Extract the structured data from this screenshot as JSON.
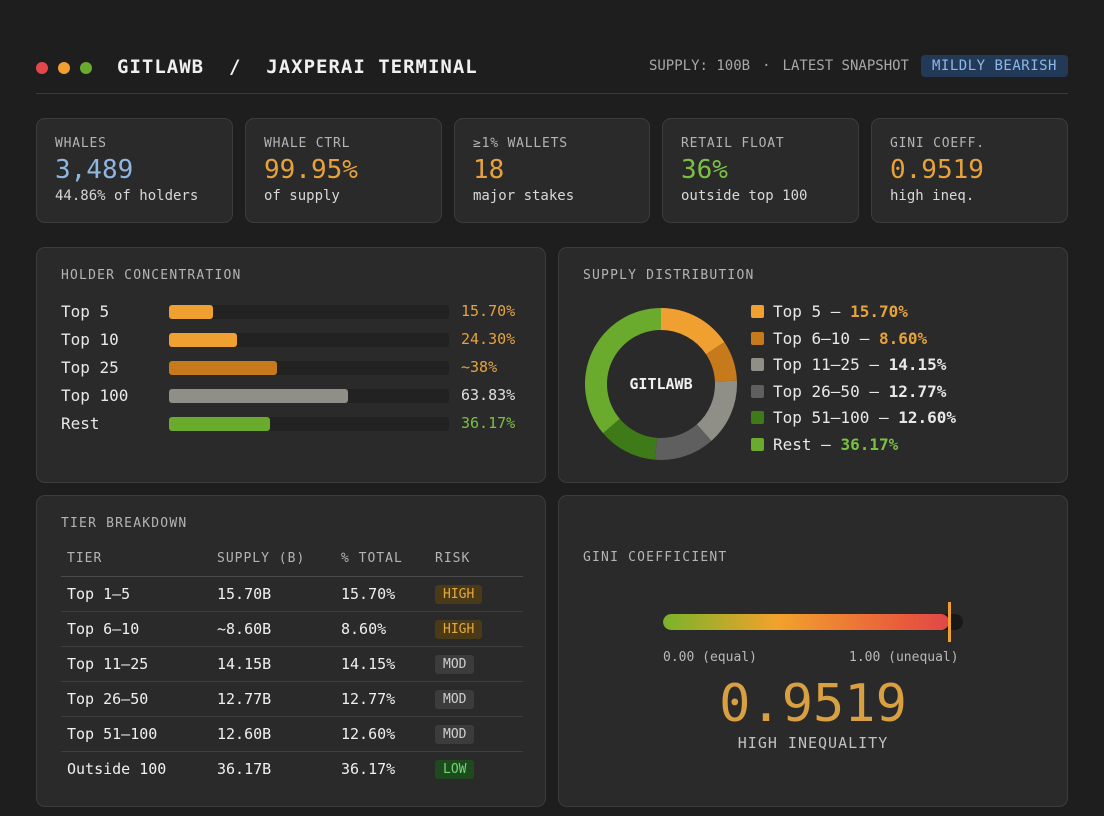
{
  "header": {
    "title": "GITLAWB  /  JAXPERAI TERMINAL",
    "supply": "SUPPLY: 100B",
    "separator": "·",
    "snapshot": "LATEST SNAPSHOT",
    "sentiment": "MILDLY BEARISH",
    "dots": [
      "#e2474b",
      "#f0a030",
      "#6aab2e"
    ]
  },
  "stats": [
    {
      "label": "WHALES",
      "value": "3,489",
      "sub": "44.86% of holders",
      "color": "#8fb6e0"
    },
    {
      "label": "WHALE CTRL",
      "value": "99.95%",
      "sub": "of supply",
      "color": "#e6a23c"
    },
    {
      "label": "≥1% WALLETS",
      "value": "18",
      "sub": "major stakes",
      "color": "#e6a23c"
    },
    {
      "label": "RETAIL FLOAT",
      "value": "36%",
      "sub": "outside top 100",
      "color": "#7ac143"
    },
    {
      "label": "GINI COEFF.",
      "value": "0.9519",
      "sub": "high ineq.",
      "color": "#e6a23c"
    }
  ],
  "concentration": {
    "title": "HOLDER CONCENTRATION",
    "rows": [
      {
        "name": "Top 5",
        "pct": "15.70%",
        "fraction": 0.157,
        "color": "#f0a030",
        "pct_color": "#e6a23c"
      },
      {
        "name": "Top 10",
        "pct": "24.30%",
        "fraction": 0.243,
        "color": "#f0a030",
        "pct_color": "#e6a23c"
      },
      {
        "name": "Top 25",
        "pct": "~38%",
        "fraction": 0.385,
        "color": "#c67a1c",
        "pct_color": "#e6a23c"
      },
      {
        "name": "Top 100",
        "pct": "63.83%",
        "fraction": 0.638,
        "color": "#8f8f88",
        "pct_color": "#e0e0e0"
      },
      {
        "name": "Rest",
        "pct": "36.17%",
        "fraction": 0.362,
        "color": "#6aab2e",
        "pct_color": "#7ac143"
      }
    ]
  },
  "distribution": {
    "title": "SUPPLY DISTRIBUTION",
    "center_label": "GITLAWB",
    "legend": [
      {
        "label": "Top 5 — ",
        "value": "15.70%",
        "color": "#f0a030",
        "value_color": "#e6a23c"
      },
      {
        "label": "Top 6–10 — ",
        "value": "8.60%",
        "color": "#c67a1c",
        "value_color": "#e6a23c"
      },
      {
        "label": "Top 11–25 — ",
        "value": "14.15%",
        "color": "#8f8f88",
        "value_color": "#e8e8e8"
      },
      {
        "label": "Top 26–50 — ",
        "value": "12.77%",
        "color": "#5f5f5f",
        "value_color": "#e8e8e8"
      },
      {
        "label": "Top 51–100 — ",
        "value": "12.60%",
        "color": "#3f7a18",
        "value_color": "#e8e8e8"
      },
      {
        "label": "Rest — ",
        "value": "36.17%",
        "color": "#6aab2e",
        "value_color": "#7ac143"
      }
    ]
  },
  "chart_data": {
    "type": "pie",
    "categories": [
      "Top 5",
      "Top 6–10",
      "Top 11–25",
      "Top 26–50",
      "Top 51–100",
      "Rest"
    ],
    "values": [
      15.7,
      8.6,
      14.15,
      12.77,
      12.6,
      36.17
    ],
    "colors": [
      "#f0a030",
      "#c67a1c",
      "#8f8f88",
      "#5f5f5f",
      "#3f7a18",
      "#6aab2e"
    ]
  },
  "tiers": {
    "title": "TIER BREAKDOWN",
    "columns": [
      "TIER",
      "SUPPLY (B)",
      "% TOTAL",
      "RISK"
    ],
    "rows": [
      {
        "tier": "Top 1–5",
        "supply": "15.70B",
        "pct": "15.70%",
        "risk": "HIGH",
        "level": "high"
      },
      {
        "tier": "Top 6–10",
        "supply": "~8.60B",
        "pct": "8.60%",
        "risk": "HIGH",
        "level": "high"
      },
      {
        "tier": "Top 11–25",
        "supply": "14.15B",
        "pct": "14.15%",
        "risk": "MOD",
        "level": "mod"
      },
      {
        "tier": "Top 26–50",
        "supply": "12.77B",
        "pct": "12.77%",
        "risk": "MOD",
        "level": "mod"
      },
      {
        "tier": "Top 51–100",
        "supply": "12.60B",
        "pct": "12.60%",
        "risk": "MOD",
        "level": "mod"
      },
      {
        "tier": "Outside 100",
        "supply": "36.17B",
        "pct": "36.17%",
        "risk": "LOW",
        "level": "low"
      }
    ]
  },
  "gini": {
    "title": "GINI COEFFICIENT",
    "value": "0.9519",
    "fraction": 0.9519,
    "low_label": "0.00 (equal)",
    "high_label": "1.00 (unequal)",
    "verdict": "HIGH INEQUALITY"
  }
}
